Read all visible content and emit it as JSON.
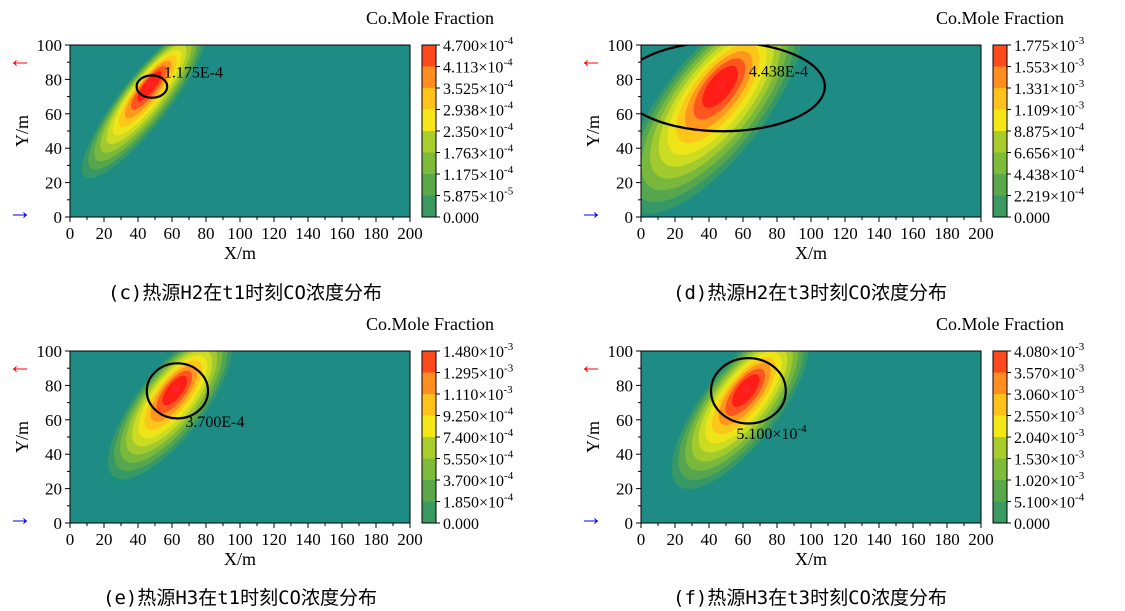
{
  "chart_data": [
    {
      "id": "c",
      "type": "heatmap",
      "caption": "(c)热源H2在t1时刻CO浓度分布",
      "colorbar_title": "Co.Mole Fraction",
      "xlabel": "X/m",
      "ylabel": "Y/m",
      "xlim": [
        0,
        200
      ],
      "ylim": [
        0,
        100
      ],
      "xticks": [
        "0",
        "20",
        "40",
        "60",
        "80",
        "100",
        "120",
        "140",
        "160",
        "180",
        "200"
      ],
      "yticks": [
        "0",
        "20",
        "40",
        "60",
        "80",
        "100"
      ],
      "colorbar_ticks": [
        "4.700×10-4",
        "4.113×10-4",
        "3.525×10-4",
        "2.938×10-4",
        "2.350×10-4",
        "1.763×10-4",
        "1.175×10-4",
        "5.875×10-5",
        "0.000"
      ],
      "source": {
        "x": 47,
        "y": 77
      },
      "max_value": 0.00047,
      "contour": {
        "level": 0.0001175,
        "label": "1.175E-4"
      },
      "colors": {
        "background": "#1e8c84",
        "source": "#ff2222",
        "contour": "#000000"
      }
    },
    {
      "id": "d",
      "type": "heatmap",
      "caption": "(d)热源H2在t3时刻CO浓度分布",
      "colorbar_title": "Co.Mole Fraction",
      "xlabel": "X/m",
      "ylabel": "Y/m",
      "xlim": [
        0,
        200
      ],
      "ylim": [
        0,
        100
      ],
      "xticks": [
        "0",
        "20",
        "40",
        "60",
        "80",
        "100",
        "120",
        "140",
        "160",
        "180",
        "200"
      ],
      "yticks": [
        "0",
        "20",
        "40",
        "60",
        "80",
        "100"
      ],
      "colorbar_ticks": [
        "1.775×10-3",
        "1.553×10-3",
        "1.331×10-3",
        "1.109×10-3",
        "8.875×10-4",
        "6.656×10-4",
        "4.438×10-4",
        "2.219×10-4",
        "0.000"
      ],
      "source": {
        "x": 47,
        "y": 77
      },
      "max_value": 0.001775,
      "contour": {
        "level": 0.0004438,
        "label": "4.438E-4"
      },
      "colors": {
        "background": "#1e8c84",
        "source": "#ff2222",
        "contour": "#000000"
      }
    },
    {
      "id": "e",
      "type": "heatmap",
      "caption": "(e)热源H3在t1时刻CO浓度分布",
      "colorbar_title": "Co.Mole Fraction",
      "xlabel": "X/m",
      "ylabel": "Y/m",
      "xlim": [
        0,
        200
      ],
      "ylim": [
        0,
        100
      ],
      "xticks": [
        "0",
        "20",
        "40",
        "60",
        "80",
        "100",
        "120",
        "140",
        "160",
        "180",
        "200"
      ],
      "yticks": [
        "0",
        "20",
        "40",
        "60",
        "80",
        "100"
      ],
      "colorbar_ticks": [
        "1.480×10-3",
        "1.295×10-3",
        "1.110×10-3",
        "9.250×10-4",
        "7.400×10-4",
        "5.550×10-4",
        "3.700×10-4",
        "1.850×10-4",
        "0.000"
      ],
      "source": {
        "x": 62,
        "y": 78
      },
      "max_value": 0.00148,
      "contour": {
        "level": 0.00037,
        "label": "3.700E-4"
      },
      "colors": {
        "background": "#1e8c84",
        "source": "#ff2222",
        "contour": "#000000"
      }
    },
    {
      "id": "f",
      "type": "heatmap",
      "caption": "(f)热源H3在t3时刻CO浓度分布",
      "colorbar_title": "Co.Mole Fraction",
      "xlabel": "X/m",
      "ylabel": "Y/m",
      "xlim": [
        0,
        200
      ],
      "ylim": [
        0,
        100
      ],
      "xticks": [
        "0",
        "20",
        "40",
        "60",
        "80",
        "100",
        "120",
        "140",
        "160",
        "180",
        "200"
      ],
      "yticks": [
        "0",
        "20",
        "40",
        "60",
        "80",
        "100"
      ],
      "colorbar_ticks": [
        "4.080×10-3",
        "3.570×10-3",
        "3.060×10-3",
        "2.550×10-3",
        "2.040×10-3",
        "1.530×10-3",
        "1.020×10-3",
        "5.100×10-4",
        "0.000"
      ],
      "source": {
        "x": 62,
        "y": 78
      },
      "max_value": 0.00408,
      "contour": {
        "level": 0.00051,
        "label": "5.100×10-4"
      },
      "colors": {
        "background": "#1e8c84",
        "source": "#ff2222",
        "contour": "#000000"
      }
    }
  ],
  "arrows": {
    "out_color": "#ff0000",
    "in_color": "#0000ff",
    "out_glyph": "←",
    "in_glyph": "→"
  }
}
